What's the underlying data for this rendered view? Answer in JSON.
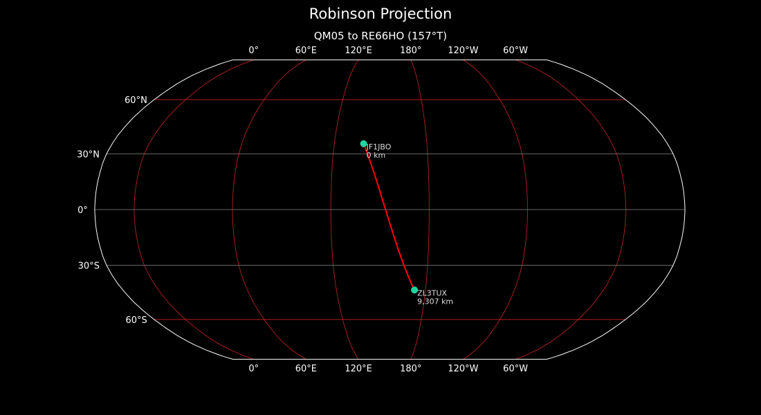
{
  "title": "Robinson Projection",
  "subtitle": "QM05 to RE66HO (157°T)",
  "map": {
    "projection": "robinson",
    "central_longitude": 156,
    "longitude_labels": [
      {
        "lon": 0,
        "label": "0°"
      },
      {
        "lon": 60,
        "label": "60°E"
      },
      {
        "lon": 120,
        "label": "120°E"
      },
      {
        "lon": 180,
        "label": "180°"
      },
      {
        "lon": -120,
        "label": "120°W"
      },
      {
        "lon": -60,
        "label": "60°W"
      }
    ],
    "latitude_labels": [
      {
        "lat": 60,
        "label": "60°N"
      },
      {
        "lat": 30,
        "label": "30°N"
      },
      {
        "lat": 0,
        "label": "0°"
      },
      {
        "lat": -30,
        "label": "30°S"
      },
      {
        "lat": -60,
        "label": "60°S"
      }
    ],
    "colors": {
      "background": "#000000",
      "coastline": "#808080",
      "meridian": "#b22222",
      "parallel_60": "#d42020",
      "parallel_other": "#666666",
      "path": "#ff0000",
      "marker": "#1fd6a0",
      "outline": "#ffffff"
    },
    "stations": [
      {
        "call": "JF1JBO",
        "distance": "0 km",
        "lat": 35.5,
        "lon": 139.0
      },
      {
        "call": "ZL3TUX",
        "distance": "9,307 km",
        "lat": -43.4,
        "lon": 172.6
      }
    ]
  }
}
